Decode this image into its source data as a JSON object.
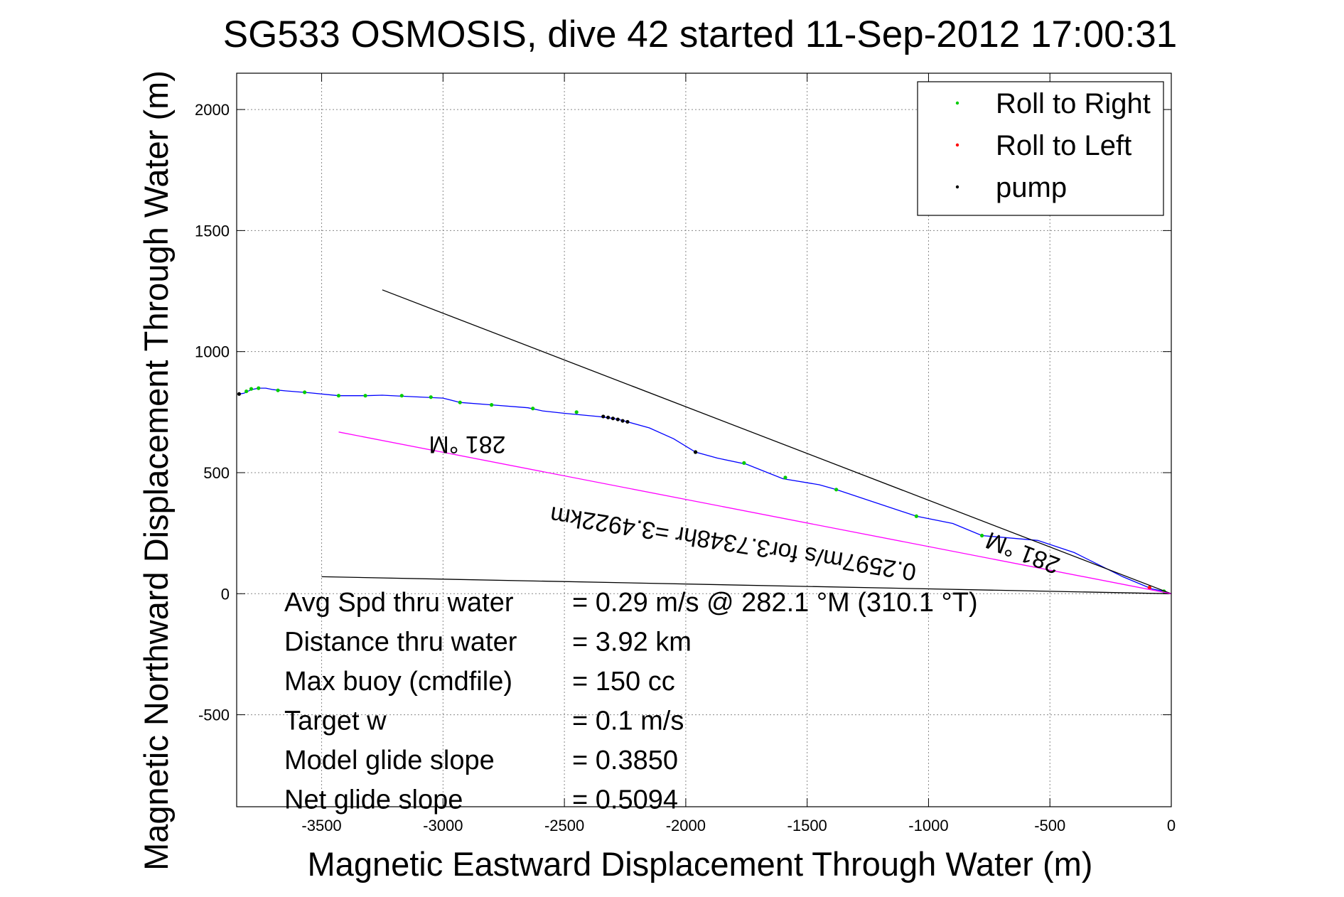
{
  "chart_data": {
    "type": "scatter",
    "title": "SG533 OSMOSIS, dive 42 started 11-Sep-2012 17:00:31",
    "xlabel": "Magnetic Eastward Displacement Through Water (m)",
    "ylabel": "Magnetic Northward Displacement Through Water (m)",
    "xlim": [
      -3850,
      0
    ],
    "ylim": [
      -880,
      2150
    ],
    "xticks": [
      -3500,
      -3000,
      -2500,
      -2000,
      -1500,
      -1000,
      -500,
      0
    ],
    "yticks": [
      -500,
      0,
      500,
      1000,
      1500,
      2000
    ],
    "grid": true,
    "legend_position": "top-right",
    "legend": [
      {
        "label": "Roll to Right",
        "color": "#00cc00"
      },
      {
        "label": "Roll to Left",
        "color": "#ff0000"
      },
      {
        "label": "pump",
        "color": "#000000"
      }
    ],
    "series": [
      {
        "name": "track",
        "kind": "line",
        "color": "#0000ff",
        "x": [
          0,
          -30,
          -80,
          -200,
          -400,
          -550,
          -780,
          -900,
          -1050,
          -1200,
          -1380,
          -1450,
          -1600,
          -1750,
          -1870,
          -1960,
          -2050,
          -2150,
          -2240,
          -2270,
          -2300,
          -2330,
          -2360,
          -2500,
          -2590,
          -2650,
          -2800,
          -2930,
          -3000,
          -3170,
          -3250,
          -3320,
          -3430,
          -3550,
          -3650,
          -3700,
          -3730,
          -3760,
          -3790,
          -3820,
          -3840
        ],
        "y": [
          0,
          10,
          20,
          70,
          170,
          220,
          240,
          290,
          320,
          370,
          430,
          450,
          475,
          535,
          560,
          585,
          640,
          685,
          710,
          718,
          724,
          728,
          732,
          745,
          755,
          768,
          780,
          790,
          808,
          816,
          820,
          818,
          818,
          830,
          838,
          843,
          849,
          849,
          843,
          828,
          825
        ]
      },
      {
        "name": "Roll to Right",
        "kind": "points",
        "color": "#00cc00",
        "x": [
          -30,
          -780,
          -1050,
          -1380,
          -1590,
          -1760,
          -1960,
          -2450,
          -2630,
          -2800,
          -2930,
          -3050,
          -3170,
          -3320,
          -3430,
          -3570,
          -3680,
          -3760,
          -3790,
          -3810
        ],
        "y": [
          10,
          240,
          320,
          430,
          480,
          540,
          585,
          750,
          765,
          780,
          790,
          812,
          818,
          818,
          818,
          832,
          840,
          849,
          846,
          836
        ]
      },
      {
        "name": "Roll to Left",
        "kind": "points",
        "color": "#ff0000",
        "x": [
          -90
        ],
        "y": [
          25
        ]
      },
      {
        "name": "pump",
        "kind": "points",
        "color": "#000000",
        "x": [
          -2240,
          -2260,
          -2280,
          -2300,
          -2320,
          -2340,
          -1960,
          -3840
        ],
        "y": [
          710,
          714,
          720,
          724,
          728,
          732,
          585,
          825
        ]
      },
      {
        "name": "heading-line-upper",
        "kind": "line",
        "color": "#000000",
        "x": [
          0,
          -3250
        ],
        "y": [
          0,
          1255
        ]
      },
      {
        "name": "heading-line-lower",
        "kind": "line",
        "color": "#000000",
        "x": [
          0,
          -3500
        ],
        "y": [
          0,
          70
        ]
      },
      {
        "name": "heading-line-magenta",
        "kind": "line",
        "color": "#ff00ff",
        "x": [
          0,
          -3430
        ],
        "y": [
          0,
          668
        ]
      }
    ],
    "annotations": [
      {
        "text": "281 °M",
        "x": -2900,
        "y": 650,
        "rotate": 180.0
      },
      {
        "text": "0.2597m/s for3.7348hr =3.4922km",
        "x": -1800,
        "y": 240,
        "rotate": 189.0
      },
      {
        "text": "281 °M",
        "x": -600,
        "y": 200,
        "rotate": 201.0
      }
    ],
    "stats": [
      {
        "label": "Avg Spd thru water",
        "value": "=  0.29 m/s @ 282.1 °M (310.1 °T)"
      },
      {
        "label": "Distance thru water",
        "value": "=  3.92 km"
      },
      {
        "label": "Max buoy (cmdfile)",
        "value": "= 150 cc"
      },
      {
        "label": "Target w",
        "value": "= 0.1 m/s"
      },
      {
        "label": "Model glide slope",
        "value": "= 0.3850"
      },
      {
        "label": "Net glide slope",
        "value": "= 0.5094"
      }
    ]
  }
}
